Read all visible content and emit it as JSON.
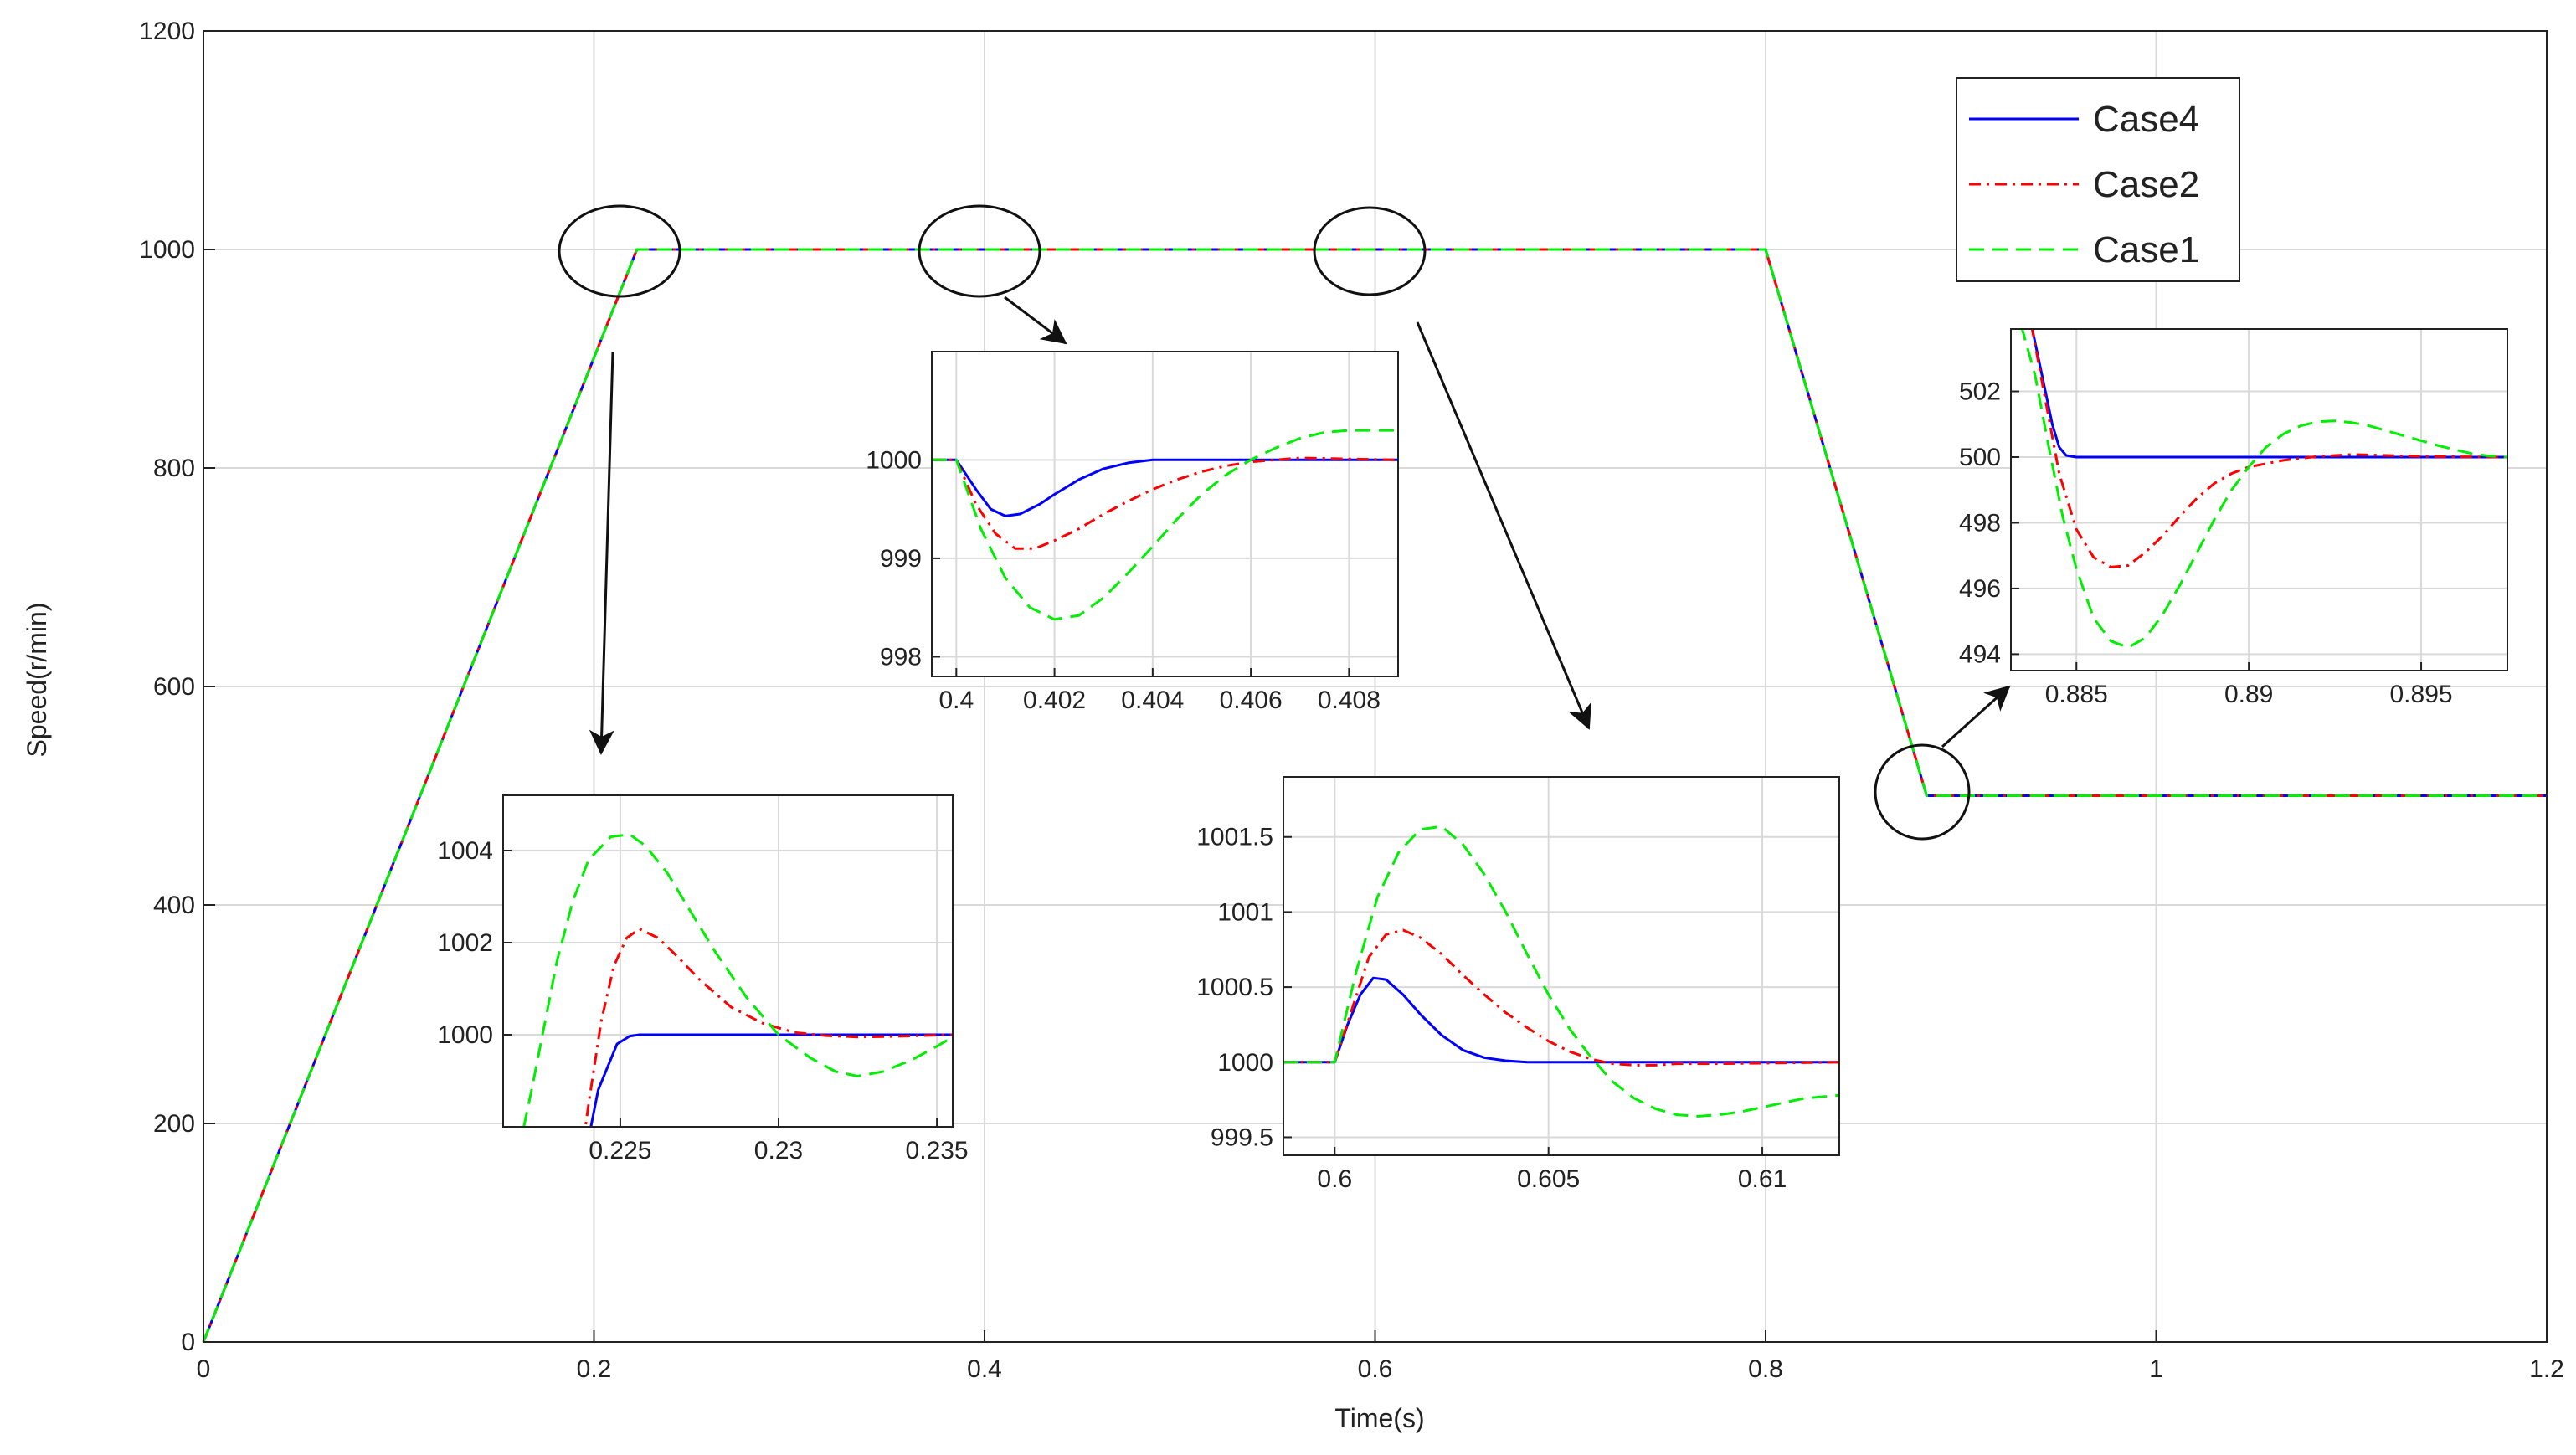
{
  "chart_data": {
    "type": "line",
    "title": "",
    "xlabel": "Time(s)",
    "ylabel": "Speed(r/min)",
    "xlim": [
      0,
      1.2
    ],
    "ylim": [
      0,
      1200
    ],
    "xticks": [
      0,
      0.2,
      0.4,
      0.6,
      0.8,
      1,
      1.2
    ],
    "xtick_labels": [
      "0",
      "0.2",
      "0.4",
      "0.6",
      "0.8",
      "1",
      "1.2"
    ],
    "yticks": [
      0,
      200,
      400,
      600,
      800,
      1000,
      1200
    ],
    "ytick_labels": [
      "0",
      "200",
      "400",
      "600",
      "800",
      "1000",
      "1200"
    ],
    "grid": true,
    "legend_position": "top-right",
    "colors": {
      "Case4": "#0000ff",
      "Case2": "#ff0000",
      "Case1": "#00ee00"
    },
    "series": [
      {
        "name": "Case4",
        "style": "solid",
        "x": [
          0,
          0.222,
          0.8,
          0.8825,
          1.2
        ],
        "y": [
          0,
          1000,
          1000,
          500,
          500
        ]
      },
      {
        "name": "Case2",
        "style": "dashdot",
        "x": [
          0,
          0.222,
          0.8,
          0.8825,
          1.2
        ],
        "y": [
          0,
          1000,
          1000,
          500,
          500
        ]
      },
      {
        "name": "Case1",
        "style": "dashed",
        "x": [
          0,
          0.222,
          0.8,
          0.8825,
          1.2
        ],
        "y": [
          0,
          1000,
          1000,
          500,
          500
        ]
      }
    ],
    "insets": [
      {
        "name": "inset-0225",
        "xlim": [
          0.2213,
          0.2355
        ],
        "ylim": [
          998,
          1005.2
        ],
        "xticks": [
          0.225,
          0.23,
          0.235
        ],
        "xtick_labels": [
          "0.225",
          "0.23",
          "0.235"
        ],
        "yticks": [
          1000,
          1002,
          1004
        ],
        "ytick_labels": [
          "1000",
          "1002",
          "1004"
        ],
        "series": [
          {
            "name": "Case4",
            "x": [
              0.2235,
              0.2243,
              0.2249,
              0.2253,
              0.2256,
              0.228,
              0.232,
              0.2355
            ],
            "y": [
              996,
              998.8,
              999.8,
              999.97,
              1000,
              1000,
              1000,
              1000
            ]
          },
          {
            "name": "Case2",
            "x": [
              0.2235,
              0.224,
              0.2244,
              0.2248,
              0.2252,
              0.2256,
              0.2262,
              0.2268,
              0.2275,
              0.2285,
              0.2295,
              0.2305,
              0.2315,
              0.2325,
              0.2335,
              0.2345,
              0.2355
            ],
            "y": [
              996,
              998.5,
              1000.3,
              1001.5,
              1002.1,
              1002.3,
              1002.1,
              1001.7,
              1001.2,
              1000.6,
              1000.25,
              1000.05,
              999.98,
              999.95,
              999.96,
              999.98,
              1000
            ]
          },
          {
            "name": "Case1",
            "x": [
              0.2218,
              0.2222,
              0.2226,
              0.223,
              0.2235,
              0.224,
              0.2247,
              0.2253,
              0.2258,
              0.2265,
              0.2272,
              0.228,
              0.229,
              0.23,
              0.231,
              0.2318,
              0.2325,
              0.2333,
              0.2342,
              0.235,
              0.2355
            ],
            "y": [
              997.5,
              998.8,
              1000.2,
              1001.6,
              1002.9,
              1003.8,
              1004.3,
              1004.35,
              1004.1,
              1003.5,
              1002.7,
              1001.8,
              1000.8,
              1000.0,
              999.5,
              999.2,
              999.1,
              999.2,
              999.45,
              999.75,
              999.95
            ]
          }
        ]
      },
      {
        "name": "inset-0400",
        "xlim": [
          0.3995,
          0.409
        ],
        "ylim": [
          997.8,
          1001.1
        ],
        "xticks": [
          0.4,
          0.402,
          0.404,
          0.406,
          0.408
        ],
        "xtick_labels": [
          "0.4",
          "0.402",
          "0.404",
          "0.406",
          "0.408"
        ],
        "yticks": [
          998,
          999,
          1000
        ],
        "ytick_labels": [
          "998",
          "999",
          "1000"
        ],
        "series": [
          {
            "name": "Case4",
            "x": [
              0.3995,
              0.4,
              0.4004,
              0.4007,
              0.401,
              0.4013,
              0.4017,
              0.402,
              0.4025,
              0.403,
              0.4035,
              0.404,
              0.406,
              0.409
            ],
            "y": [
              1000,
              1000,
              999.7,
              999.5,
              999.43,
              999.45,
              999.55,
              999.65,
              999.8,
              999.91,
              999.97,
              1000,
              1000,
              1000
            ]
          },
          {
            "name": "Case2",
            "x": [
              0.3995,
              0.4,
              0.4004,
              0.4008,
              0.4012,
              0.4016,
              0.402,
              0.4025,
              0.403,
              0.4035,
              0.404,
              0.4045,
              0.405,
              0.4055,
              0.406,
              0.4065,
              0.407,
              0.408,
              0.409
            ],
            "y": [
              1000,
              1000,
              999.55,
              999.25,
              999.1,
              999.1,
              999.18,
              999.3,
              999.45,
              999.58,
              999.7,
              999.8,
              999.88,
              999.94,
              999.98,
              1000.0,
              1000.02,
              1000.01,
              1000
            ]
          },
          {
            "name": "Case1",
            "x": [
              0.3995,
              0.4,
              0.4005,
              0.401,
              0.4015,
              0.402,
              0.4025,
              0.403,
              0.4035,
              0.404,
              0.4045,
              0.405,
              0.4055,
              0.406,
              0.4065,
              0.407,
              0.4075,
              0.408,
              0.4085,
              0.409
            ],
            "y": [
              1000,
              1000,
              999.3,
              998.8,
              998.5,
              998.38,
              998.42,
              998.6,
              998.85,
              999.12,
              999.4,
              999.65,
              999.85,
              1000.0,
              1000.12,
              1000.22,
              1000.28,
              1000.3,
              1000.3,
              1000.3
            ]
          }
        ]
      },
      {
        "name": "inset-0600",
        "xlim": [
          0.5988,
          0.6118
        ],
        "ylim": [
          999.38,
          1001.9
        ],
        "xticks": [
          0.6,
          0.605,
          0.61
        ],
        "xtick_labels": [
          "0.6",
          "0.605",
          "0.61"
        ],
        "yticks": [
          999.5,
          1000,
          1000.5,
          1001,
          1001.5
        ],
        "ytick_labels": [
          "999.5",
          "1000",
          "1000.5",
          "1001",
          "1001.5"
        ],
        "series": [
          {
            "name": "Case4",
            "x": [
              0.5988,
              0.6,
              0.6003,
              0.6006,
              0.6009,
              0.6012,
              0.6016,
              0.602,
              0.6025,
              0.603,
              0.6035,
              0.604,
              0.6045,
              0.605,
              0.608,
              0.6118
            ],
            "y": [
              1000,
              1000,
              1000.25,
              1000.45,
              1000.56,
              1000.55,
              1000.45,
              1000.32,
              1000.18,
              1000.08,
              1000.03,
              1000.01,
              1000,
              1000,
              1000,
              1000
            ]
          },
          {
            "name": "Case2",
            "x": [
              0.5988,
              0.6,
              0.6004,
              0.6008,
              0.6012,
              0.6016,
              0.602,
              0.6025,
              0.603,
              0.6035,
              0.604,
              0.6045,
              0.605,
              0.6055,
              0.606,
              0.6065,
              0.607,
              0.6075,
              0.608,
              0.609,
              0.6118
            ],
            "y": [
              1000,
              1000,
              1000.35,
              1000.7,
              1000.85,
              1000.88,
              1000.83,
              1000.72,
              1000.58,
              1000.45,
              1000.33,
              1000.23,
              1000.14,
              1000.07,
              1000.02,
              999.99,
              999.98,
              999.98,
              999.99,
              999.99,
              1000
            ]
          },
          {
            "name": "Case1",
            "x": [
              0.5988,
              0.6,
              0.6005,
              0.601,
              0.6015,
              0.602,
              0.6025,
              0.603,
              0.6035,
              0.604,
              0.6045,
              0.605,
              0.6055,
              0.606,
              0.6065,
              0.607,
              0.6075,
              0.608,
              0.6085,
              0.609,
              0.6095,
              0.61,
              0.6105,
              0.611,
              0.6118
            ],
            "y": [
              1000,
              1000,
              1000.6,
              1001.1,
              1001.4,
              1001.55,
              1001.57,
              1001.45,
              1001.25,
              1001.0,
              1000.72,
              1000.45,
              1000.22,
              1000.03,
              999.87,
              999.76,
              999.69,
              999.65,
              999.64,
              999.65,
              999.67,
              999.7,
              999.73,
              999.76,
              999.78
            ]
          }
        ]
      },
      {
        "name": "inset-0885",
        "xlim": [
          0.8831,
          0.8975
        ],
        "ylim": [
          493.5,
          503.9
        ],
        "xticks": [
          0.885,
          0.89,
          0.895
        ],
        "xtick_labels": [
          "0.885",
          "0.89",
          "0.895"
        ],
        "yticks": [
          494,
          496,
          498,
          500,
          502
        ],
        "ytick_labels": [
          "494",
          "496",
          "498",
          "500",
          "502"
        ],
        "series": [
          {
            "name": "Case4",
            "x": [
              0.8837,
              0.884,
              0.8843,
              0.8845,
              0.8847,
              0.885,
              0.89,
              0.8975
            ],
            "y": [
              504,
              502.5,
              501,
              500.3,
              500.05,
              500,
              500,
              500
            ]
          },
          {
            "name": "Case2",
            "x": [
              0.8837,
              0.884,
              0.8845,
              0.885,
              0.8855,
              0.886,
              0.8865,
              0.887,
              0.8875,
              0.888,
              0.8885,
              0.889,
              0.8895,
              0.89,
              0.891,
              0.892,
              0.893,
              0.894,
              0.895,
              0.8975
            ],
            "y": [
              504,
              502.3,
              499.5,
              497.8,
              496.95,
              496.65,
              496.7,
              497.1,
              497.6,
              498.2,
              498.75,
              499.2,
              499.5,
              499.7,
              499.9,
              500.02,
              500.08,
              500.05,
              500.02,
              500
            ]
          },
          {
            "name": "Case1",
            "x": [
              0.8834,
              0.8838,
              0.8842,
              0.8846,
              0.885,
              0.8855,
              0.886,
              0.8865,
              0.887,
              0.8875,
              0.888,
              0.8885,
              0.889,
              0.8895,
              0.89,
              0.8905,
              0.891,
              0.8915,
              0.892,
              0.8925,
              0.893,
              0.8935,
              0.894,
              0.8945,
              0.895,
              0.8955,
              0.896,
              0.8965,
              0.897,
              0.8975
            ],
            "y": [
              504,
              502.5,
              500.3,
              498.2,
              496.6,
              495.1,
              494.4,
              494.2,
              494.5,
              495.2,
              496.1,
              497.1,
              498.1,
              499.0,
              499.7,
              500.3,
              500.7,
              500.95,
              501.08,
              501.1,
              501.05,
              500.95,
              500.8,
              500.65,
              500.5,
              500.35,
              500.22,
              500.1,
              500.03,
              500
            ]
          }
        ]
      }
    ]
  }
}
